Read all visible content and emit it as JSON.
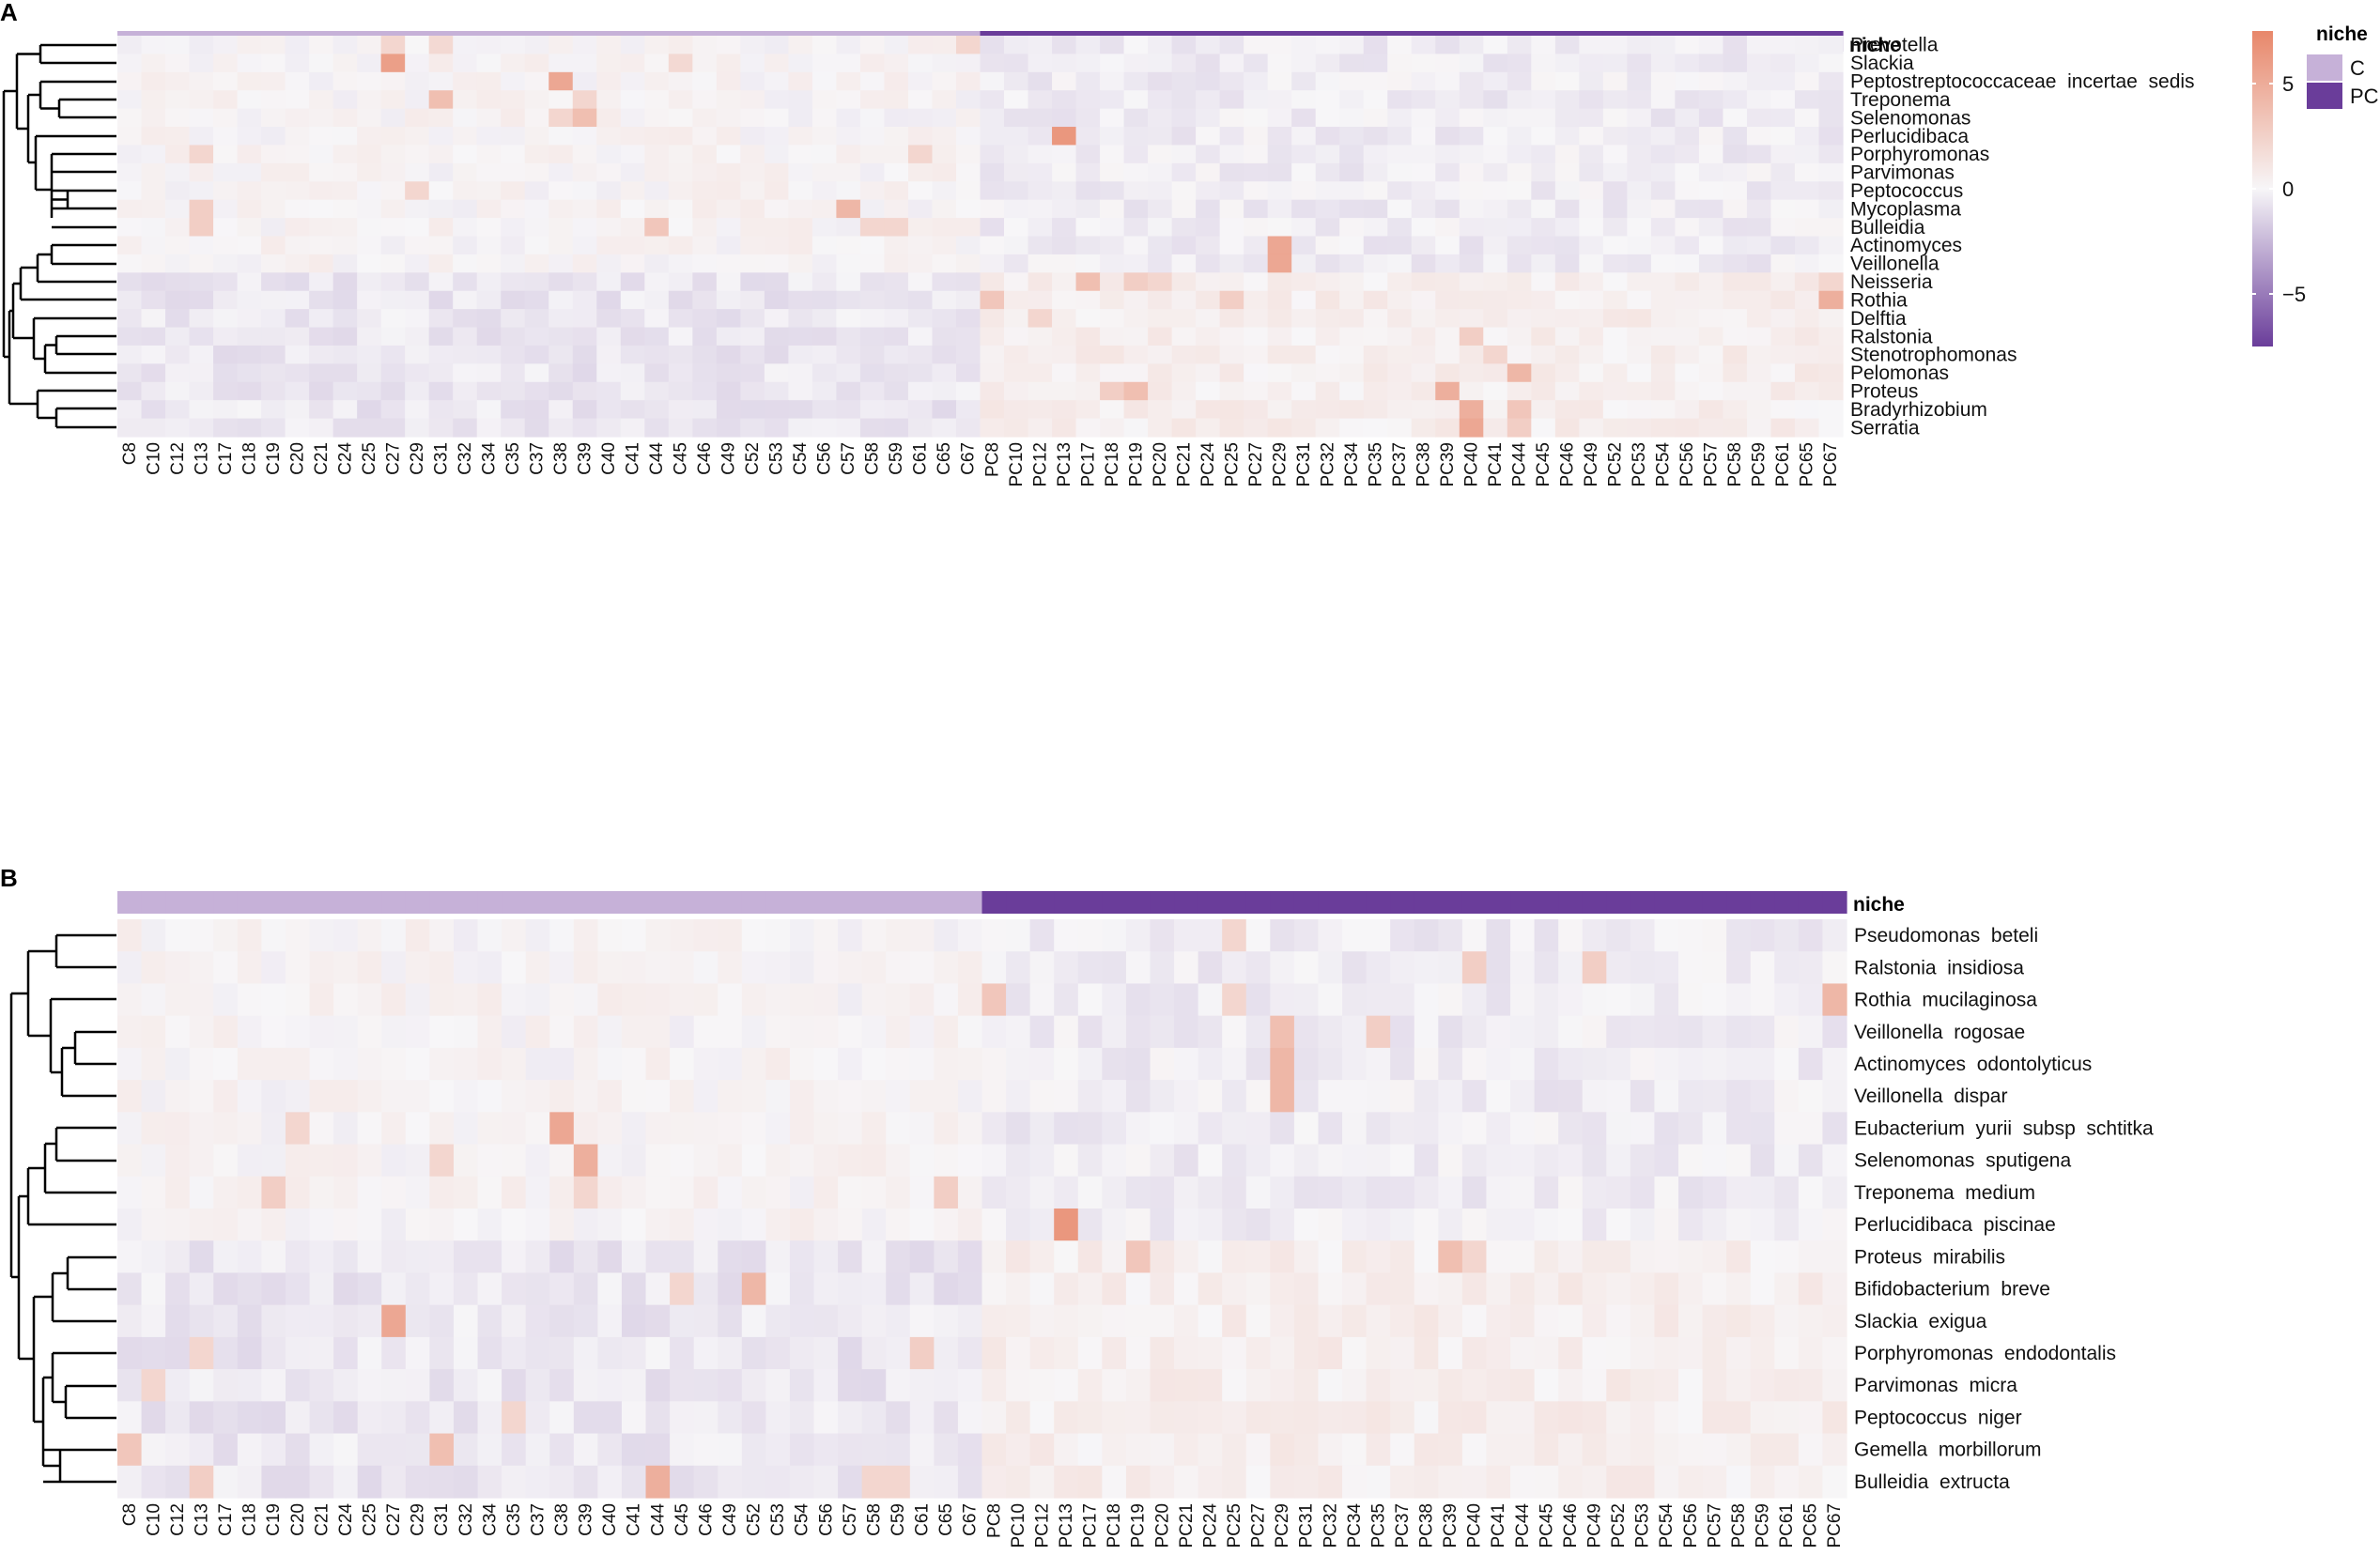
{
  "chart_data": [
    {
      "type": "heatmap",
      "panel_label": "A",
      "annotation_title": "niche",
      "columns": [
        "C8",
        "C10",
        "C12",
        "C13",
        "C17",
        "C18",
        "C19",
        "C20",
        "C21",
        "C24",
        "C25",
        "C27",
        "C29",
        "C31",
        "C32",
        "C34",
        "C35",
        "C37",
        "C38",
        "C39",
        "C40",
        "C41",
        "C44",
        "C45",
        "C46",
        "C49",
        "C52",
        "C53",
        "C54",
        "C56",
        "C57",
        "C58",
        "C59",
        "C61",
        "C65",
        "C67",
        "PC8",
        "PC10",
        "PC12",
        "PC13",
        "PC17",
        "PC18",
        "PC19",
        "PC20",
        "PC21",
        "PC24",
        "PC25",
        "PC27",
        "PC29",
        "PC31",
        "PC32",
        "PC34",
        "PC35",
        "PC37",
        "PC38",
        "PC39",
        "PC40",
        "PC41",
        "PC44",
        "PC45",
        "PC46",
        "PC49",
        "PC52",
        "PC53",
        "PC54",
        "PC56",
        "PC57",
        "PC58",
        "PC59",
        "PC61",
        "PC65",
        "PC67"
      ],
      "rows": [
        "Prevotella",
        "Slackia",
        "Peptostreptococcaceae  incertae  sedis",
        "Treponema",
        "Selenomonas",
        "Perlucidibaca",
        "Porphyromonas",
        "Parvimonas",
        "Peptococcus",
        "Mycoplasma",
        "Bulleidia",
        "Actinomyces",
        "Veillonella",
        "Neisseria",
        "Rothia",
        "Delftia",
        "Ralstonia",
        "Stenotrophomonas",
        "Pelomonas",
        "Proteus",
        "Bradyrhizobium",
        "Serratia"
      ],
      "highlights": [
        {
          "row": "Slackia",
          "col": "C27",
          "value": 5.5
        },
        {
          "row": "Prevotella",
          "col": "C27",
          "value": 2
        },
        {
          "row": "Prevotella",
          "col": "C31",
          "value": 1.8
        },
        {
          "row": "Prevotella",
          "col": "C67",
          "value": 2
        },
        {
          "row": "Slackia",
          "col": "C45",
          "value": 1.8
        },
        {
          "row": "Peptostreptococcaceae  incertae  sedis",
          "col": "C38",
          "value": 5
        },
        {
          "row": "Treponema",
          "col": "C31",
          "value": 3.5
        },
        {
          "row": "Treponema",
          "col": "C39",
          "value": 2
        },
        {
          "row": "Selenomonas",
          "col": "C39",
          "value": 3.5
        },
        {
          "row": "Selenomonas",
          "col": "C38",
          "value": 2
        },
        {
          "row": "Perlucidibaca",
          "col": "PC13",
          "value": 6
        },
        {
          "row": "Porphyromonas",
          "col": "C13",
          "value": 2
        },
        {
          "row": "Porphyromonas",
          "col": "C61",
          "value": 2
        },
        {
          "row": "Peptococcus",
          "col": "C29",
          "value": 2
        },
        {
          "row": "Mycoplasma",
          "col": "C13",
          "value": 2.5
        },
        {
          "row": "Mycoplasma",
          "col": "C57",
          "value": 4
        },
        {
          "row": "Bulleidia",
          "col": "C13",
          "value": 2.5
        },
        {
          "row": "Bulleidia",
          "col": "C44",
          "value": 3
        },
        {
          "row": "Bulleidia",
          "col": "C58",
          "value": 2
        },
        {
          "row": "Bulleidia",
          "col": "C59",
          "value": 2
        },
        {
          "row": "Actinomyces",
          "col": "PC29",
          "value": 5
        },
        {
          "row": "Veillonella",
          "col": "PC29",
          "value": 5
        },
        {
          "row": "Neisseria",
          "col": "PC17",
          "value": 3.5
        },
        {
          "row": "Neisseria",
          "col": "PC19",
          "value": 2.5
        },
        {
          "row": "Neisseria",
          "col": "PC20",
          "value": 2
        },
        {
          "row": "Neisseria",
          "col": "PC67",
          "value": 2
        },
        {
          "row": "Rothia",
          "col": "PC8",
          "value": 3
        },
        {
          "row": "Rothia",
          "col": "PC25",
          "value": 2.5
        },
        {
          "row": "Rothia",
          "col": "PC67",
          "value": 4.5
        },
        {
          "row": "Delftia",
          "col": "PC12",
          "value": 2
        },
        {
          "row": "Ralstonia",
          "col": "PC40",
          "value": 2.5
        },
        {
          "row": "Stenotrophomonas",
          "col": "PC41",
          "value": 2
        },
        {
          "row": "Pelomonas",
          "col": "PC44",
          "value": 4
        },
        {
          "row": "Proteus",
          "col": "PC18",
          "value": 2.5
        },
        {
          "row": "Proteus",
          "col": "PC19",
          "value": 3.5
        },
        {
          "row": "Proteus",
          "col": "PC39",
          "value": 4.5
        },
        {
          "row": "Bradyrhizobium",
          "col": "PC40",
          "value": 4.5
        },
        {
          "row": "Bradyrhizobium",
          "col": "PC44",
          "value": 3
        },
        {
          "row": "Serratia",
          "col": "PC40",
          "value": 5
        },
        {
          "row": "Serratia",
          "col": "PC44",
          "value": 2.5
        }
      ]
    },
    {
      "type": "heatmap",
      "panel_label": "B",
      "annotation_title": "niche",
      "columns": [
        "C8",
        "C10",
        "C12",
        "C13",
        "C17",
        "C18",
        "C19",
        "C20",
        "C21",
        "C24",
        "C25",
        "C27",
        "C29",
        "C31",
        "C32",
        "C34",
        "C35",
        "C37",
        "C38",
        "C39",
        "C40",
        "C41",
        "C44",
        "C45",
        "C46",
        "C49",
        "C52",
        "C53",
        "C54",
        "C56",
        "C57",
        "C58",
        "C59",
        "C61",
        "C65",
        "C67",
        "PC8",
        "PC10",
        "PC12",
        "PC13",
        "PC17",
        "PC18",
        "PC19",
        "PC20",
        "PC21",
        "PC24",
        "PC25",
        "PC27",
        "PC29",
        "PC31",
        "PC32",
        "PC34",
        "PC35",
        "PC37",
        "PC38",
        "PC39",
        "PC40",
        "PC41",
        "PC44",
        "PC45",
        "PC46",
        "PC49",
        "PC52",
        "PC53",
        "PC54",
        "PC56",
        "PC57",
        "PC58",
        "PC59",
        "PC61",
        "PC65",
        "PC67"
      ],
      "rows": [
        "Pseudomonas  beteli",
        "Ralstonia  insidiosa",
        "Rothia  mucilaginosa",
        "Veillonella  rogosae",
        "Actinomyces  odontolyticus",
        "Veillonella  dispar",
        "Eubacterium  yurii  subsp  schtitka",
        "Selenomonas  sputigena",
        "Treponema  medium",
        "Perlucidibaca  piscinae",
        "Proteus  mirabilis",
        "Bifidobacterium  breve",
        "Slackia  exigua",
        "Porphyromonas  endodontalis",
        "Parvimonas  micra",
        "Peptococcus  niger",
        "Gemella  morbillorum",
        "Bulleidia  extructa"
      ],
      "highlights": [
        {
          "row": "Pseudomonas  beteli",
          "col": "PC25",
          "value": 2
        },
        {
          "row": "Ralstonia  insidiosa",
          "col": "PC40",
          "value": 2.5
        },
        {
          "row": "Ralstonia  insidiosa",
          "col": "PC49",
          "value": 2.5
        },
        {
          "row": "Rothia  mucilaginosa",
          "col": "PC8",
          "value": 3
        },
        {
          "row": "Rothia  mucilaginosa",
          "col": "PC25",
          "value": 2
        },
        {
          "row": "Rothia  mucilaginosa",
          "col": "PC67",
          "value": 4
        },
        {
          "row": "Veillonella  rogosae",
          "col": "PC29",
          "value": 3.5
        },
        {
          "row": "Veillonella  rogosae",
          "col": "PC35",
          "value": 2.5
        },
        {
          "row": "Actinomyces  odontolyticus",
          "col": "PC29",
          "value": 4
        },
        {
          "row": "Veillonella  dispar",
          "col": "PC29",
          "value": 4
        },
        {
          "row": "Eubacterium  yurii  subsp  schtitka",
          "col": "C38",
          "value": 5
        },
        {
          "row": "Eubacterium  yurii  subsp  schtitka",
          "col": "C20",
          "value": 2
        },
        {
          "row": "Selenomonas  sputigena",
          "col": "C39",
          "value": 4.5
        },
        {
          "row": "Selenomonas  sputigena",
          "col": "C31",
          "value": 2
        },
        {
          "row": "Treponema  medium",
          "col": "C19",
          "value": 2.5
        },
        {
          "row": "Treponema  medium",
          "col": "C39",
          "value": 2
        },
        {
          "row": "Treponema  medium",
          "col": "C65",
          "value": 2.5
        },
        {
          "row": "Perlucidibaca  piscinae",
          "col": "PC13",
          "value": 6
        },
        {
          "row": "Proteus  mirabilis",
          "col": "PC19",
          "value": 3
        },
        {
          "row": "Proteus  mirabilis",
          "col": "PC39",
          "value": 3.5
        },
        {
          "row": "Proteus  mirabilis",
          "col": "PC40",
          "value": 2
        },
        {
          "row": "Bifidobacterium  breve",
          "col": "C52",
          "value": 4
        },
        {
          "row": "Bifidobacterium  breve",
          "col": "C45",
          "value": 2
        },
        {
          "row": "Slackia  exigua",
          "col": "C27",
          "value": 5
        },
        {
          "row": "Porphyromonas  endodontalis",
          "col": "C13",
          "value": 2
        },
        {
          "row": "Porphyromonas  endodontalis",
          "col": "C61",
          "value": 2.5
        },
        {
          "row": "Parvimonas  micra",
          "col": "C10",
          "value": 2
        },
        {
          "row": "Peptococcus  niger",
          "col": "C35",
          "value": 2
        },
        {
          "row": "Gemella  morbillorum",
          "col": "C8",
          "value": 3
        },
        {
          "row": "Gemella  morbillorum",
          "col": "C31",
          "value": 3.5
        },
        {
          "row": "Bulleidia  extructa",
          "col": "C13",
          "value": 2.5
        },
        {
          "row": "Bulleidia  extructa",
          "col": "C44",
          "value": 4.5
        },
        {
          "row": "Bulleidia  extructa",
          "col": "C58",
          "value": 2
        },
        {
          "row": "Bulleidia  extructa",
          "col": "C59",
          "value": 2
        }
      ]
    }
  ],
  "legend": {
    "title": "niche",
    "entries": [
      {
        "label": "C",
        "color": "#c6b1d8"
      },
      {
        "label": "PC",
        "color": "#6a3d9a"
      }
    ],
    "colorbar_ticks": [
      {
        "label": "5",
        "value": 5
      },
      {
        "label": "0",
        "value": 0
      },
      {
        "label": "−5",
        "value": -5
      }
    ],
    "colorbar_range": [
      -7.5,
      7.5
    ]
  },
  "colors": {
    "positive": "#e8876a",
    "neutral": "#f7f6f8",
    "negative": "#6a3d9a",
    "niche_c": "#c6b1d8",
    "niche_pc": "#6a3d9a",
    "line": "#000000"
  }
}
